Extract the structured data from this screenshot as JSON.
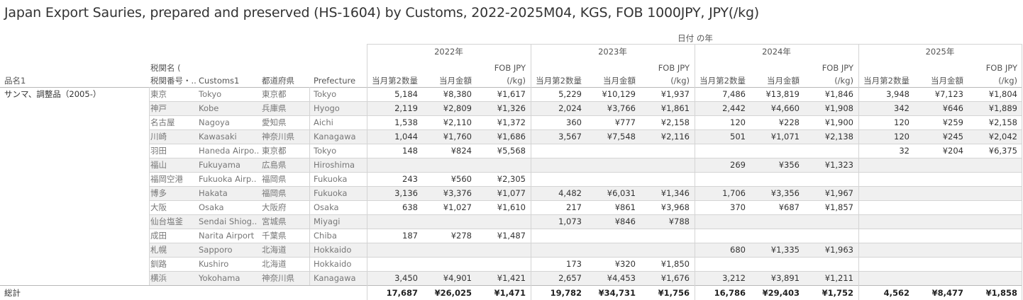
{
  "title": "Japan Export Sauries, prepared and preserved (HS-1604) by Customs, 2022-2025M04, KGS, FOB 1000JPY, JPY(/kg)",
  "header": {
    "top_caption": "日付 の年",
    "row_headers": [
      "品名1",
      "税関名 (\n税関番号・..",
      "Customs1",
      "都道府県",
      "Prefecture"
    ],
    "measure_labels": [
      "当月第2数量",
      "当月金額",
      "FOB JPY\n(/kg)"
    ],
    "product": "サンマ、調整品（2005-）",
    "total_label": "総計"
  },
  "chart_data": {
    "type": "table",
    "years": [
      "2022年",
      "2023年",
      "2024年",
      "2025年"
    ],
    "measures": [
      "当月第2数量",
      "当月金額",
      "FOB JPY (/kg)"
    ],
    "rows": [
      {
        "jp": "東京",
        "customs": "Tokyo",
        "pref_jp": "東京都",
        "pref": "Tokyo",
        "values": [
          [
            "5,184",
            "¥8,380",
            "¥1,617"
          ],
          [
            "5,229",
            "¥10,129",
            "¥1,937"
          ],
          [
            "7,486",
            "¥13,819",
            "¥1,846"
          ],
          [
            "3,948",
            "¥7,123",
            "¥1,804"
          ]
        ]
      },
      {
        "jp": "神戸",
        "customs": "Kobe",
        "pref_jp": "兵庫県",
        "pref": "Hyogo",
        "values": [
          [
            "2,119",
            "¥2,809",
            "¥1,326"
          ],
          [
            "2,024",
            "¥3,766",
            "¥1,861"
          ],
          [
            "2,442",
            "¥4,660",
            "¥1,908"
          ],
          [
            "342",
            "¥646",
            "¥1,889"
          ]
        ]
      },
      {
        "jp": "名古屋",
        "customs": "Nagoya",
        "pref_jp": "愛知県",
        "pref": "Aichi",
        "values": [
          [
            "1,538",
            "¥2,110",
            "¥1,372"
          ],
          [
            "360",
            "¥777",
            "¥2,158"
          ],
          [
            "120",
            "¥228",
            "¥1,900"
          ],
          [
            "120",
            "¥259",
            "¥2,158"
          ]
        ]
      },
      {
        "jp": "川崎",
        "customs": "Kawasaki",
        "pref_jp": "神奈川県",
        "pref": "Kanagawa",
        "values": [
          [
            "1,044",
            "¥1,760",
            "¥1,686"
          ],
          [
            "3,567",
            "¥7,548",
            "¥2,116"
          ],
          [
            "501",
            "¥1,071",
            "¥2,138"
          ],
          [
            "120",
            "¥245",
            "¥2,042"
          ]
        ]
      },
      {
        "jp": "羽田",
        "customs": "Haneda Airpo..",
        "pref_jp": "東京都",
        "pref": "Tokyo",
        "values": [
          [
            "148",
            "¥824",
            "¥5,568"
          ],
          [
            "",
            "",
            ""
          ],
          [
            "",
            "",
            ""
          ],
          [
            "32",
            "¥204",
            "¥6,375"
          ]
        ]
      },
      {
        "jp": "福山",
        "customs": "Fukuyama",
        "pref_jp": "広島県",
        "pref": "Hiroshima",
        "values": [
          [
            "",
            "",
            ""
          ],
          [
            "",
            "",
            ""
          ],
          [
            "269",
            "¥356",
            "¥1,323"
          ],
          [
            "",
            "",
            ""
          ]
        ]
      },
      {
        "jp": "福岡空港",
        "customs": "Fukuoka Airp..",
        "pref_jp": "福岡県",
        "pref": "Fukuoka",
        "values": [
          [
            "243",
            "¥560",
            "¥2,305"
          ],
          [
            "",
            "",
            ""
          ],
          [
            "",
            "",
            ""
          ],
          [
            "",
            "",
            ""
          ]
        ]
      },
      {
        "jp": "博多",
        "customs": "Hakata",
        "pref_jp": "福岡県",
        "pref": "Fukuoka",
        "values": [
          [
            "3,136",
            "¥3,376",
            "¥1,077"
          ],
          [
            "4,482",
            "¥6,031",
            "¥1,346"
          ],
          [
            "1,706",
            "¥3,356",
            "¥1,967"
          ],
          [
            "",
            "",
            ""
          ]
        ]
      },
      {
        "jp": "大阪",
        "customs": "Osaka",
        "pref_jp": "大阪府",
        "pref": "Osaka",
        "values": [
          [
            "638",
            "¥1,027",
            "¥1,610"
          ],
          [
            "217",
            "¥861",
            "¥3,968"
          ],
          [
            "370",
            "¥687",
            "¥1,857"
          ],
          [
            "",
            "",
            ""
          ]
        ]
      },
      {
        "jp": "仙台塩釜",
        "customs": "Sendai Shiog..",
        "pref_jp": "宮城県",
        "pref": "Miyagi",
        "values": [
          [
            "",
            "",
            ""
          ],
          [
            "1,073",
            "¥846",
            "¥788"
          ],
          [
            "",
            "",
            ""
          ],
          [
            "",
            "",
            ""
          ]
        ]
      },
      {
        "jp": "成田",
        "customs": "Narita Airport",
        "pref_jp": "千葉県",
        "pref": "Chiba",
        "values": [
          [
            "187",
            "¥278",
            "¥1,487"
          ],
          [
            "",
            "",
            ""
          ],
          [
            "",
            "",
            ""
          ],
          [
            "",
            "",
            ""
          ]
        ]
      },
      {
        "jp": "札幌",
        "customs": "Sapporo",
        "pref_jp": "北海道",
        "pref": "Hokkaido",
        "values": [
          [
            "",
            "",
            ""
          ],
          [
            "",
            "",
            ""
          ],
          [
            "680",
            "¥1,335",
            "¥1,963"
          ],
          [
            "",
            "",
            ""
          ]
        ]
      },
      {
        "jp": "釧路",
        "customs": "Kushiro",
        "pref_jp": "北海道",
        "pref": "Hokkaido",
        "values": [
          [
            "",
            "",
            ""
          ],
          [
            "173",
            "¥320",
            "¥1,850"
          ],
          [
            "",
            "",
            ""
          ],
          [
            "",
            "",
            ""
          ]
        ]
      },
      {
        "jp": "横浜",
        "customs": "Yokohama",
        "pref_jp": "神奈川県",
        "pref": "Kanagawa",
        "values": [
          [
            "3,450",
            "¥4,901",
            "¥1,421"
          ],
          [
            "2,657",
            "¥4,453",
            "¥1,676"
          ],
          [
            "3,212",
            "¥3,891",
            "¥1,211"
          ],
          [
            "",
            "",
            ""
          ]
        ]
      }
    ],
    "totals": [
      [
        "17,687",
        "¥26,025",
        "¥1,471"
      ],
      [
        "19,782",
        "¥34,731",
        "¥1,756"
      ],
      [
        "16,786",
        "¥29,403",
        "¥1,752"
      ],
      [
        "4,562",
        "¥8,477",
        "¥1,858"
      ]
    ]
  }
}
